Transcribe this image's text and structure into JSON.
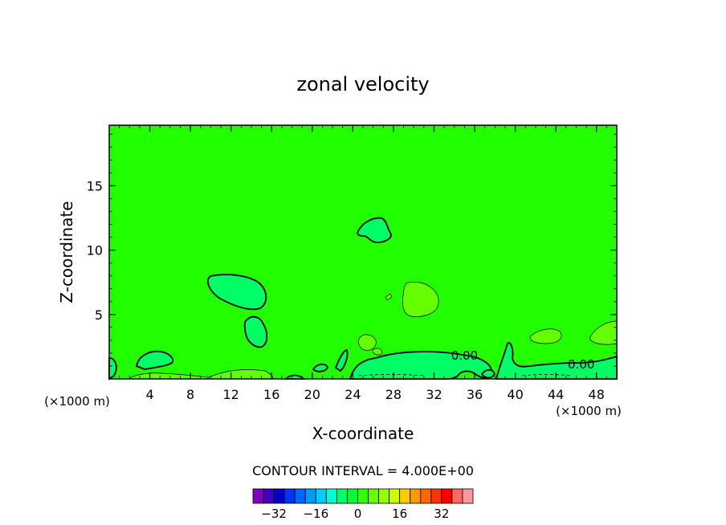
{
  "chart_data": {
    "type": "contour",
    "title": "zonal velocity",
    "xlabel": "X-coordinate",
    "ylabel": "Z-coordinate",
    "x_unit_left": "(×1000 m)",
    "x_unit_right": "(×1000 m)",
    "xlim": [
      0,
      50
    ],
    "ylim": [
      0,
      19.7
    ],
    "x_ticks": [
      4,
      8,
      12,
      16,
      20,
      24,
      28,
      32,
      36,
      40,
      44,
      48
    ],
    "y_ticks": [
      5,
      10,
      15
    ],
    "contour_interval_label": "CONTOUR INTERVAL = 4.000E+00",
    "contour_labels": [
      {
        "text": "0.00",
        "x": 35,
        "y": 1.5
      },
      {
        "text": "0.00",
        "x": 46.5,
        "y": 0.8
      }
    ],
    "background_color": "#22ff00",
    "colorbar": {
      "colors": [
        "#7f00bf",
        "#3f00bf",
        "#0000cc",
        "#0033ff",
        "#0066ff",
        "#0099ff",
        "#00ccff",
        "#00ffcc",
        "#00ff66",
        "#00ff33",
        "#33ff00",
        "#66ff00",
        "#99ff00",
        "#ccff00",
        "#ffcc00",
        "#ff9900",
        "#ff6600",
        "#ff3300",
        "#ff0000",
        "#ff6666",
        "#ff9999"
      ],
      "tick_labels": [
        "-32",
        "-16",
        "0",
        "16",
        "32"
      ],
      "tick_values": [
        -32,
        -16,
        0,
        16,
        32
      ],
      "range": [
        -40,
        44
      ]
    },
    "regions": [
      {
        "kind": "negative",
        "fill": "#00ff66",
        "cx": 12.3,
        "cy": 7.2,
        "rx": 2.8,
        "ry": 1.2
      },
      {
        "kind": "negative",
        "fill": "#00ff66",
        "cx": 14.1,
        "cy": 3.8,
        "rx": 0.9,
        "ry": 1.2
      },
      {
        "kind": "negative",
        "fill": "#00ff66",
        "cx": 26.3,
        "cy": 11.6,
        "rx": 1.3,
        "ry": 0.9
      },
      {
        "kind": "negative",
        "fill": "#00ff66",
        "cx": 4.6,
        "cy": 1.3,
        "rx": 1.3,
        "ry": 0.7
      },
      {
        "kind": "positive",
        "fill": "#66ff00",
        "cx": 30.6,
        "cy": 6.3,
        "rx": 1.6,
        "ry": 1.4
      },
      {
        "kind": "positive",
        "fill": "#66ff00",
        "cx": 25.6,
        "cy": 2.8,
        "rx": 0.8,
        "ry": 0.6
      },
      {
        "kind": "positive",
        "fill": "#66ff00",
        "cx": 43.2,
        "cy": 3.4,
        "rx": 1.4,
        "ry": 0.6
      },
      {
        "kind": "positive",
        "fill": "#66ff00",
        "cx": 48.9,
        "cy": 3.5,
        "rx": 1.3,
        "ry": 0.9
      }
    ]
  }
}
